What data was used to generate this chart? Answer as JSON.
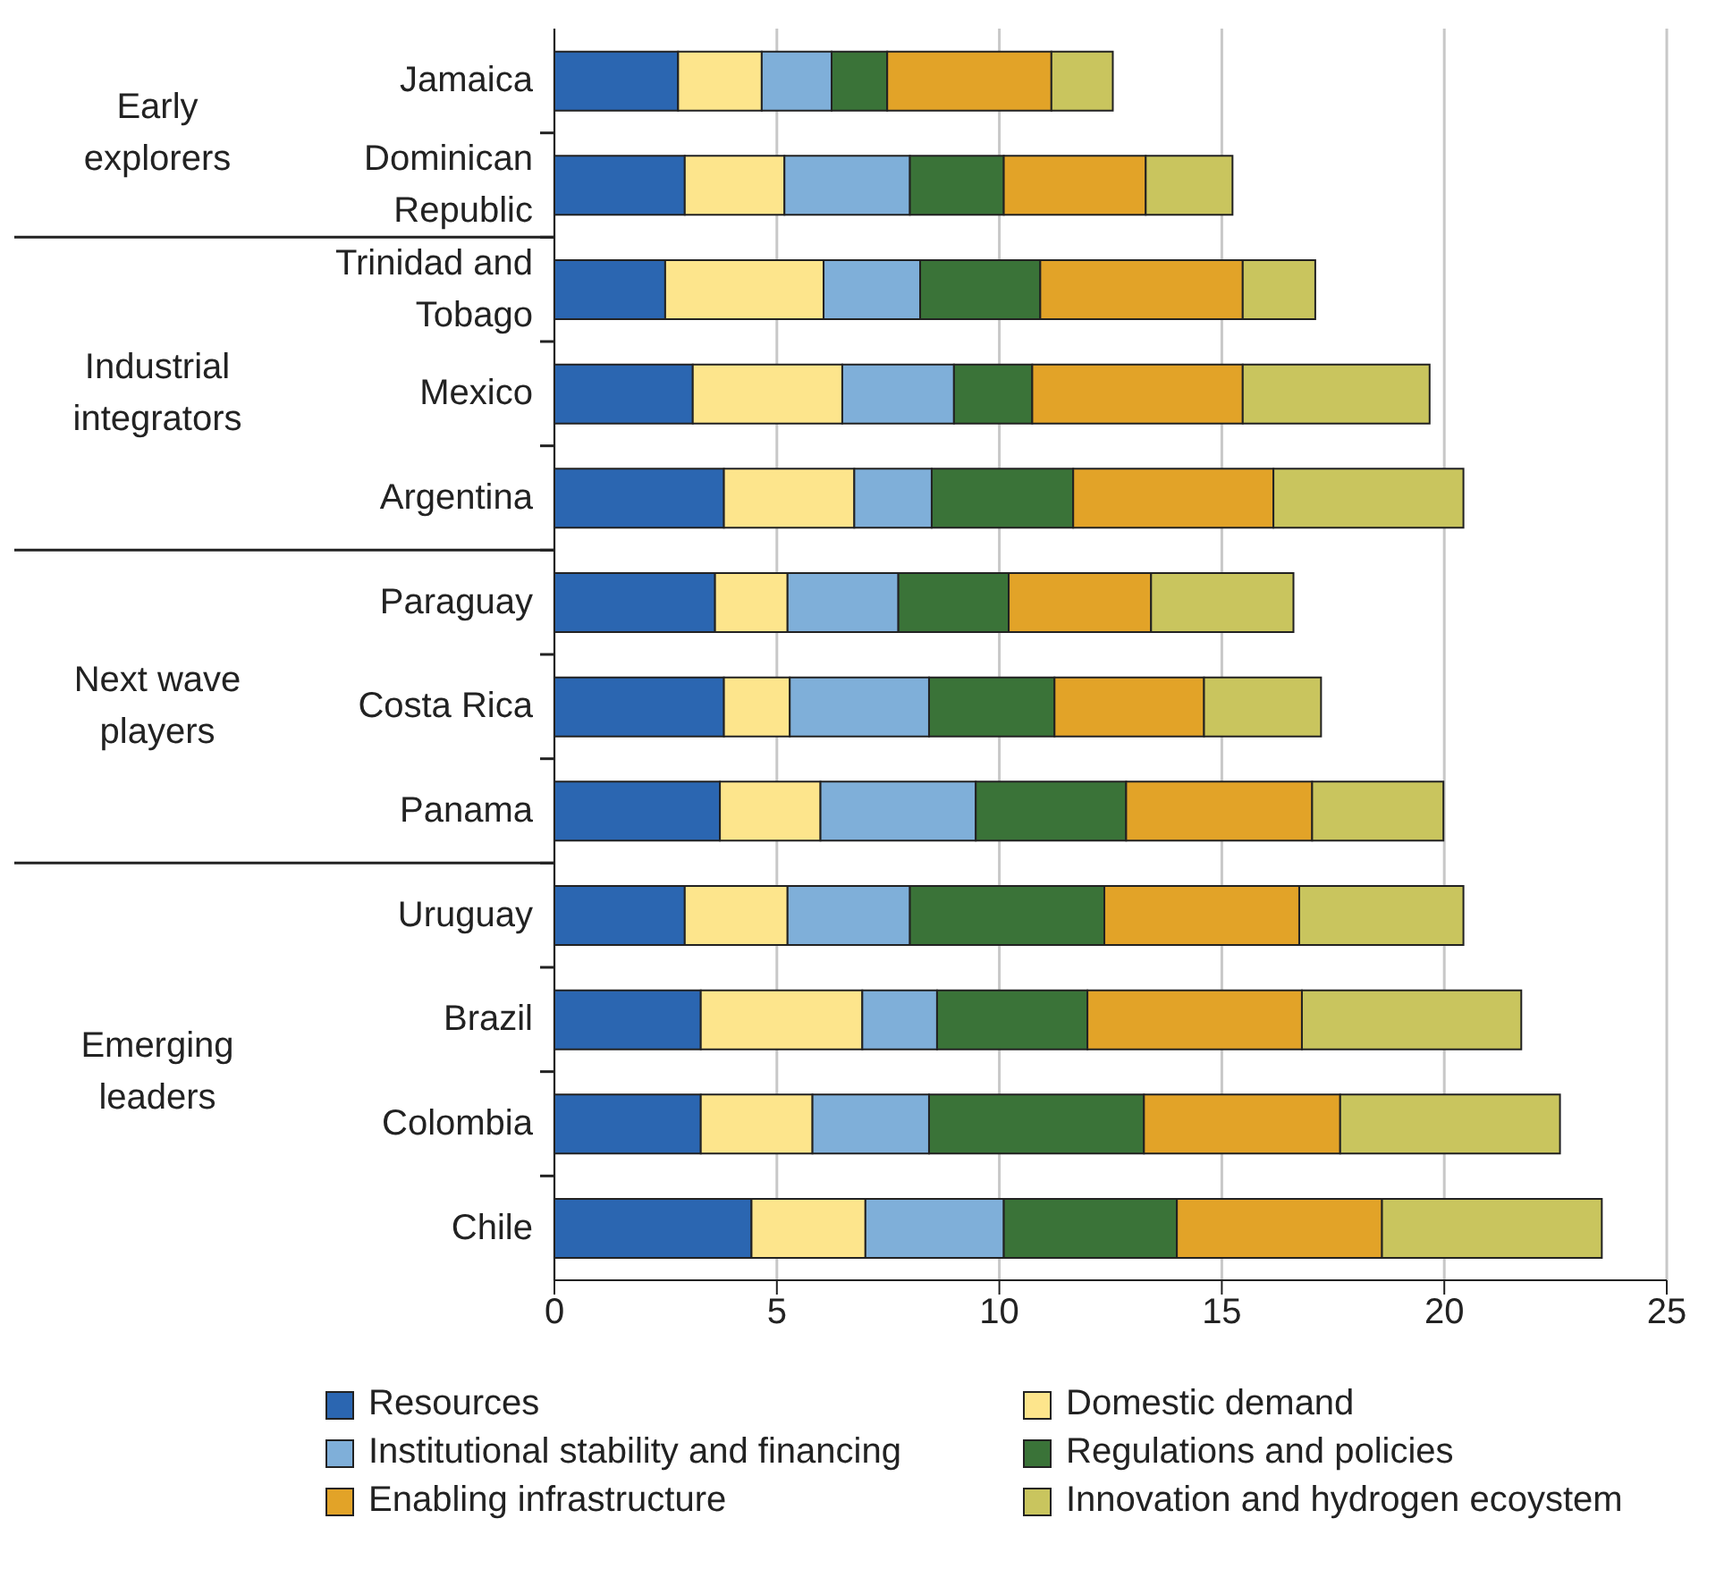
{
  "chart_data": {
    "type": "bar",
    "orientation": "horizontal",
    "stacked": true,
    "categories": [
      "Jamaica",
      "Dominican Republic",
      "Trinidad and Tobago",
      "Mexico",
      "Argentina",
      "Paraguay",
      "Costa Rica",
      "Panama",
      "Uruguay",
      "Brazil",
      "Colombia",
      "Chile"
    ],
    "series": [
      {
        "name": "Resources",
        "color": "#2b66b1",
        "values": [
          2.78,
          2.93,
          2.49,
          3.11,
          3.81,
          3.61,
          3.81,
          3.72,
          2.93,
          3.29,
          3.29,
          4.43
        ]
      },
      {
        "name": "Domestic demand",
        "color": "#fde58c",
        "values": [
          1.88,
          2.24,
          3.56,
          3.36,
          2.93,
          1.63,
          1.48,
          2.26,
          2.31,
          3.63,
          2.51,
          2.56
        ]
      },
      {
        "name": "Institutional stability and financing",
        "color": "#7fafd9",
        "values": [
          1.57,
          2.82,
          2.17,
          2.51,
          1.74,
          2.49,
          3.13,
          3.49,
          2.75,
          1.68,
          2.62,
          3.11
        ]
      },
      {
        "name": "Regulations and policies",
        "color": "#3a7338",
        "values": [
          1.25,
          2.11,
          2.7,
          1.76,
          3.18,
          2.48,
          2.82,
          3.38,
          4.37,
          3.38,
          4.83,
          3.89
        ]
      },
      {
        "name": "Enabling infrastructure",
        "color": "#e2a328",
        "values": [
          3.69,
          3.19,
          4.55,
          4.73,
          4.5,
          3.2,
          3.36,
          4.18,
          4.38,
          4.82,
          4.41,
          4.61
        ]
      },
      {
        "name": "Innovation and hydrogen ecoystem",
        "color": "#c9c55e",
        "values": [
          1.38,
          1.95,
          1.63,
          4.2,
          4.27,
          3.2,
          2.63,
          2.95,
          3.69,
          4.93,
          4.94,
          4.94
        ]
      }
    ],
    "xlim": [
      0,
      25
    ],
    "xticks": [
      0,
      5,
      10,
      15,
      20,
      25
    ],
    "grid": "x",
    "legend": "bottom",
    "annotations": [
      "Early explorers",
      "Industrial integrators",
      "Next wave players",
      "Emerging leaders"
    ]
  }
}
